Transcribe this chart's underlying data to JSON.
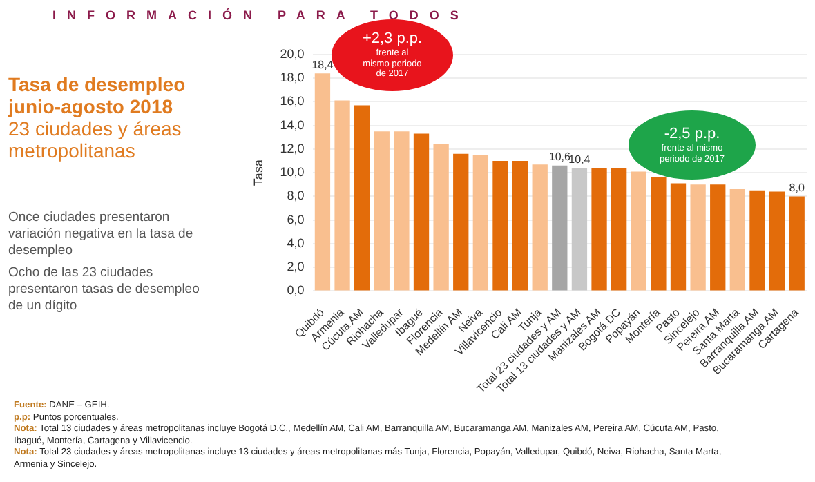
{
  "chart_data": {
    "type": "bar",
    "title": "Tasa de desempleo junio-agosto 2018",
    "subtitle": "23 ciudades y áreas metropolitanas",
    "ylabel": "Tasa",
    "categories": [
      "Quibdó",
      "Armenia",
      "Cúcuta AM",
      "Riohacha",
      "Valledupar",
      "Ibagué",
      "Florencia",
      "Medellín AM",
      "Neiva",
      "Villavicencio",
      "Cali AM",
      "Tunja",
      "Total 23 ciudades y AM",
      "Total 13 ciudades y AM",
      "Manizales AM",
      "Bogotá DC",
      "Popayán",
      "Montería",
      "Pasto",
      "Sincelejo",
      "Pereira AM",
      "Santa Marta",
      "Barranquilla AM",
      "Bucaramanga AM",
      "Cartagena"
    ],
    "values": [
      18.4,
      16.1,
      15.7,
      13.5,
      13.5,
      13.3,
      12.4,
      11.6,
      11.5,
      11.0,
      11.0,
      10.7,
      10.6,
      10.4,
      10.4,
      10.4,
      10.1,
      9.6,
      9.1,
      9.0,
      9.0,
      8.6,
      8.5,
      8.4,
      8.0
    ],
    "value_labels": [
      "18,4",
      null,
      null,
      null,
      null,
      null,
      null,
      null,
      null,
      null,
      null,
      null,
      "10,6",
      "10,4",
      null,
      null,
      null,
      null,
      null,
      null,
      null,
      null,
      null,
      null,
      "8,0"
    ],
    "colors": [
      "#f9bf8f",
      "#f9bf8f",
      "#e36c0a",
      "#f9bf8f",
      "#f9bf8f",
      "#e36c0a",
      "#f9bf8f",
      "#e36c0a",
      "#f9bf8f",
      "#e36c0a",
      "#e36c0a",
      "#f9bf8f",
      "#a6a6a6",
      "#c8c8c8",
      "#e36c0a",
      "#e36c0a",
      "#f9bf8f",
      "#e36c0a",
      "#e36c0a",
      "#f9bf8f",
      "#e36c0a",
      "#f9bf8f",
      "#e36c0a",
      "#e36c0a",
      "#e36c0a"
    ],
    "ylim": [
      0,
      20
    ],
    "yticks": [
      {
        "value": 0,
        "label": "0,0"
      },
      {
        "value": 2,
        "label": "2,0"
      },
      {
        "value": 4,
        "label": "4,0"
      },
      {
        "value": 6,
        "label": "6,0"
      },
      {
        "value": 8,
        "label": "8,0"
      },
      {
        "value": 10,
        "label": "10,0"
      },
      {
        "value": 12,
        "label": "12,0"
      },
      {
        "value": 14,
        "label": "14,0"
      },
      {
        "value": 16,
        "label": "16,0"
      },
      {
        "value": 18,
        "label": "18,0"
      },
      {
        "value": 20,
        "label": "20,0"
      }
    ],
    "grid": "y",
    "legend": false,
    "annotations": [
      "INFORMACIÓN PARA TODOS",
      "Once ciudades presentaron variación negativa en la tasa de desempleo",
      "Ocho de las 23 ciudades presentaron tasas de desempleo de un dígito",
      "+2,3 p.p.\nfrente al\nmismo periodo\nde 2017",
      "-2,5 p.p.\nfrente al mismo\nperiodo de 2017",
      "Fuente: DANE – GEIH.",
      "p.p: Puntos porcentuales.",
      "Nota: Total 13 ciudades y áreas metropolitanas incluye Bogotá D.C., Medellín AM, Cali AM, Barranquilla AM, Bucaramanga AM, Manizales AM, Pereira AM, Cúcuta AM, Pasto, Ibagué, Montería, Cartagena y Villavicencio.",
      "Nota: Total 23 ciudades y áreas metropolitanas incluye 13 ciudades y áreas metropolitanas más Tunja, Florencia, Popayán, Valledupar, Quibdó, Neiva, Riohacha, Santa Marta, Armenia y Sincelejo."
    ]
  }
}
